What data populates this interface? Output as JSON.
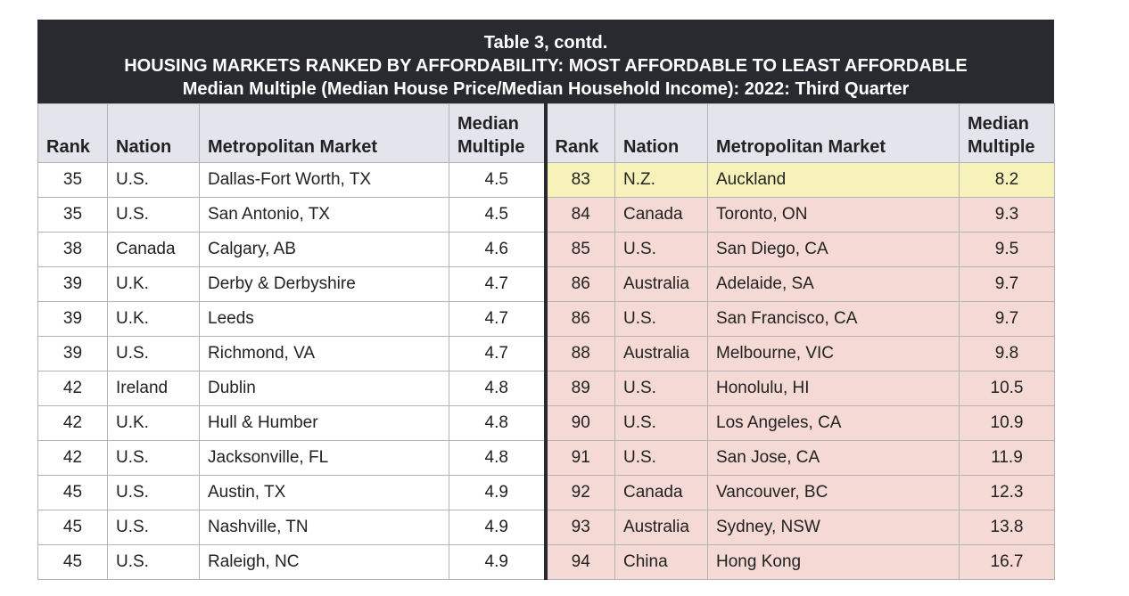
{
  "title": {
    "line1": "Table 3, contd.",
    "line2": "HOUSING MARKETS RANKED BY AFFORDABILITY: MOST AFFORDABLE TO LEAST AFFORDABLE",
    "line3": "Median Multiple (Median House Price/Median Household Income): 2022: Third Quarter"
  },
  "headers": {
    "rank": "Rank",
    "nation": "Nation",
    "market": "Metropolitan Market",
    "multiple_1": "Median",
    "multiple_2": "Multiple"
  },
  "rows": [
    {
      "l": [
        "35",
        "U.S.",
        "Dallas-Fort Worth, TX",
        "4.5"
      ],
      "r": [
        "83",
        "N.Z.",
        "Auckland",
        "8.2"
      ],
      "highlight": true
    },
    {
      "l": [
        "35",
        "U.S.",
        "San Antonio, TX",
        "4.5"
      ],
      "r": [
        "84",
        "Canada",
        "Toronto, ON",
        "9.3"
      ]
    },
    {
      "l": [
        "38",
        "Canada",
        "Calgary, AB",
        "4.6"
      ],
      "r": [
        "85",
        "U.S.",
        "San Diego, CA",
        "9.5"
      ]
    },
    {
      "l": [
        "39",
        "U.K.",
        "Derby & Derbyshire",
        "4.7"
      ],
      "r": [
        "86",
        "Australia",
        "Adelaide, SA",
        "9.7"
      ]
    },
    {
      "l": [
        "39",
        "U.K.",
        "Leeds",
        "4.7"
      ],
      "r": [
        "86",
        "U.S.",
        "San Francisco, CA",
        "9.7"
      ]
    },
    {
      "l": [
        "39",
        "U.S.",
        "Richmond, VA",
        "4.7"
      ],
      "r": [
        "88",
        "Australia",
        "Melbourne, VIC",
        "9.8"
      ]
    },
    {
      "l": [
        "42",
        "Ireland",
        "Dublin",
        "4.8"
      ],
      "r": [
        "89",
        "U.S.",
        "Honolulu, HI",
        "10.5"
      ]
    },
    {
      "l": [
        "42",
        "U.K.",
        "Hull & Humber",
        "4.8"
      ],
      "r": [
        "90",
        "U.S.",
        "Los Angeles, CA",
        "10.9"
      ]
    },
    {
      "l": [
        "42",
        "U.S.",
        "Jacksonville, FL",
        "4.8"
      ],
      "r": [
        "91",
        "U.S.",
        "San Jose, CA",
        "11.9"
      ]
    },
    {
      "l": [
        "45",
        "U.S.",
        "Austin, TX",
        "4.9"
      ],
      "r": [
        "92",
        "Canada",
        "Vancouver, BC",
        "12.3"
      ]
    },
    {
      "l": [
        "45",
        "U.S.",
        "Nashville, TN",
        "4.9"
      ],
      "r": [
        "93",
        "Australia",
        "Sydney, NSW",
        "13.8"
      ]
    },
    {
      "l": [
        "45",
        "U.S.",
        "Raleigh, NC",
        "4.9"
      ],
      "r": [
        "94",
        "China",
        "Hong Kong",
        "16.7"
      ]
    }
  ],
  "colors": {
    "title_bg": "#282a30",
    "header_bg": "#e4e4ec",
    "highlight_yellow": "#f6f2b9",
    "least_affordable_pink": "#f4d9d4"
  }
}
